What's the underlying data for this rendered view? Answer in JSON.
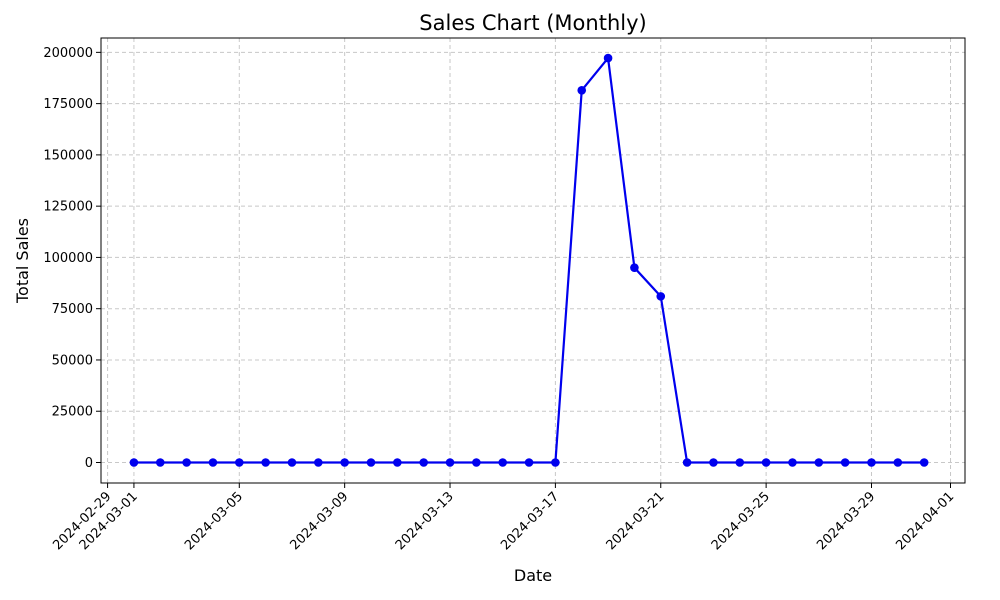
{
  "chart_data": {
    "type": "line",
    "title": "Sales Chart (Monthly)",
    "xlabel": "Date",
    "ylabel": "Total Sales",
    "x_ticks": [
      "2024-02-29",
      "2024-03-01",
      "2024-03-05",
      "2024-03-09",
      "2024-03-13",
      "2024-03-17",
      "2024-03-21",
      "2024-03-25",
      "2024-03-29",
      "2024-04-01"
    ],
    "y_ticks": [
      0,
      25000,
      50000,
      75000,
      100000,
      125000,
      150000,
      175000,
      200000
    ],
    "ylim": [
      -10000,
      207000
    ],
    "xlim": [
      "2024-02-28",
      "2024-04-01"
    ],
    "grid": true,
    "series": [
      {
        "color": "#0000ee",
        "points": [
          {
            "x": "2024-03-01",
            "y": 0
          },
          {
            "x": "2024-03-02",
            "y": 0
          },
          {
            "x": "2024-03-03",
            "y": 0
          },
          {
            "x": "2024-03-04",
            "y": 0
          },
          {
            "x": "2024-03-05",
            "y": 0
          },
          {
            "x": "2024-03-06",
            "y": 0
          },
          {
            "x": "2024-03-07",
            "y": 0
          },
          {
            "x": "2024-03-08",
            "y": 0
          },
          {
            "x": "2024-03-09",
            "y": 0
          },
          {
            "x": "2024-03-10",
            "y": 0
          },
          {
            "x": "2024-03-11",
            "y": 0
          },
          {
            "x": "2024-03-12",
            "y": 0
          },
          {
            "x": "2024-03-13",
            "y": 0
          },
          {
            "x": "2024-03-14",
            "y": 0
          },
          {
            "x": "2024-03-15",
            "y": 0
          },
          {
            "x": "2024-03-16",
            "y": 0
          },
          {
            "x": "2024-03-17",
            "y": 0
          },
          {
            "x": "2024-03-18",
            "y": 181500
          },
          {
            "x": "2024-03-19",
            "y": 197200
          },
          {
            "x": "2024-03-20",
            "y": 95000
          },
          {
            "x": "2024-03-21",
            "y": 81000
          },
          {
            "x": "2024-03-22",
            "y": 0
          },
          {
            "x": "2024-03-23",
            "y": 0
          },
          {
            "x": "2024-03-24",
            "y": 0
          },
          {
            "x": "2024-03-25",
            "y": 0
          },
          {
            "x": "2024-03-26",
            "y": 0
          },
          {
            "x": "2024-03-27",
            "y": 0
          },
          {
            "x": "2024-03-28",
            "y": 0
          },
          {
            "x": "2024-03-29",
            "y": 0
          },
          {
            "x": "2024-03-30",
            "y": 0
          },
          {
            "x": "2024-03-31",
            "y": 0
          }
        ]
      }
    ]
  }
}
